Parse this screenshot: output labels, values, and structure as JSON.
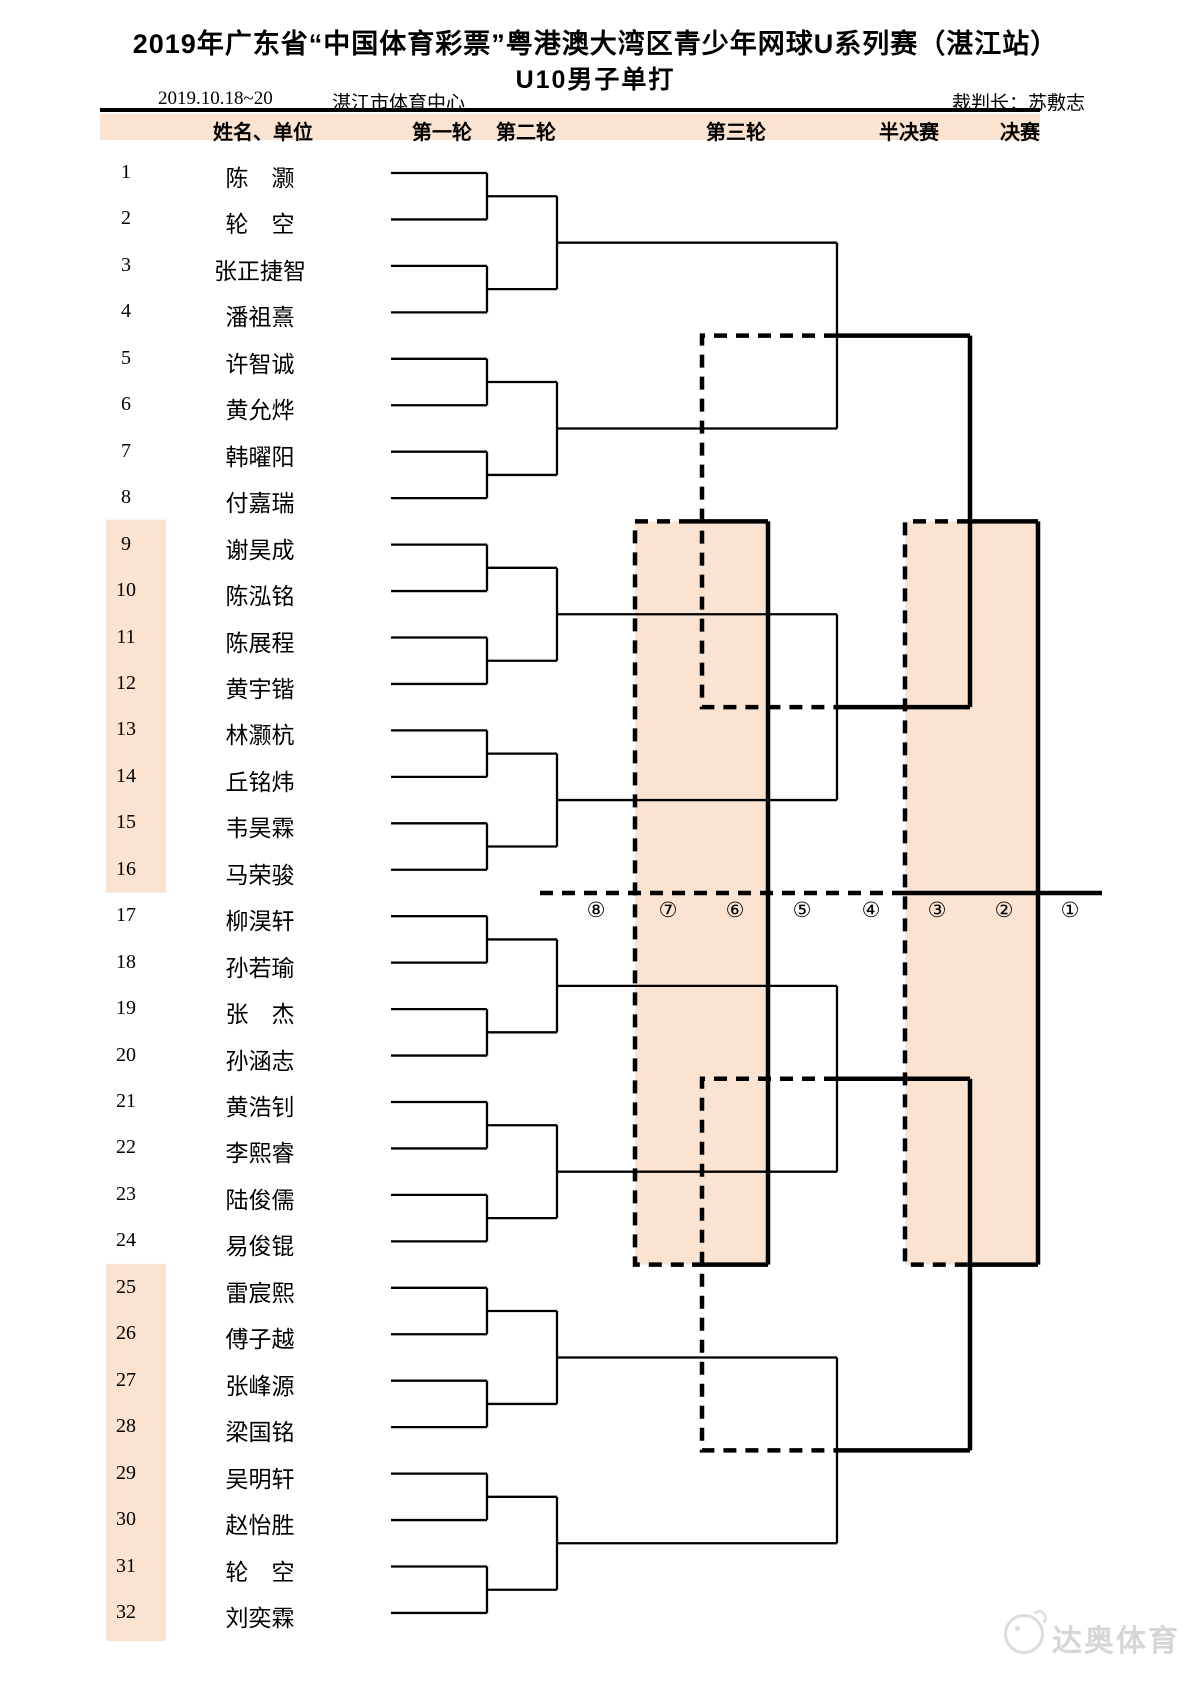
{
  "title": "2019年广东省“中国体育彩票”粤港澳大湾区青少年网球U系列赛（湛江站）",
  "subtitle": "U10男子单打",
  "info": {
    "date": "2019.10.18~20",
    "venue": "湛江市体育中心",
    "referee": "裁判长：苏敷志"
  },
  "header": {
    "cols": [
      "姓名、单位",
      "第一轮",
      "第二轮",
      "第三轮",
      "半决赛",
      "决赛"
    ]
  },
  "players": [
    {
      "no": "1",
      "name": "陈　灏"
    },
    {
      "no": "2",
      "name": "轮　空"
    },
    {
      "no": "3",
      "name": "张正捷智"
    },
    {
      "no": "4",
      "name": "潘祖熹"
    },
    {
      "no": "5",
      "name": "许智诚"
    },
    {
      "no": "6",
      "name": "黄允烨"
    },
    {
      "no": "7",
      "name": "韩曜阳"
    },
    {
      "no": "8",
      "name": "付嘉瑞"
    },
    {
      "no": "9",
      "name": "谢昊成"
    },
    {
      "no": "10",
      "name": "陈泓铭"
    },
    {
      "no": "11",
      "name": "陈展程"
    },
    {
      "no": "12",
      "name": "黄宇锴"
    },
    {
      "no": "13",
      "name": "林灏杭"
    },
    {
      "no": "14",
      "name": "丘铭炜"
    },
    {
      "no": "15",
      "name": "韦昊霖"
    },
    {
      "no": "16",
      "name": "马荣骏"
    },
    {
      "no": "17",
      "name": "柳淏轩"
    },
    {
      "no": "18",
      "name": "孙若瑜"
    },
    {
      "no": "19",
      "name": "张　杰"
    },
    {
      "no": "20",
      "name": "孙涵志"
    },
    {
      "no": "21",
      "name": "黄浩钊"
    },
    {
      "no": "22",
      "name": "李熙睿"
    },
    {
      "no": "23",
      "name": "陆俊儒"
    },
    {
      "no": "24",
      "name": "易俊锟"
    },
    {
      "no": "25",
      "name": "雷宸熙"
    },
    {
      "no": "26",
      "name": "傅子越"
    },
    {
      "no": "27",
      "name": "张峰源"
    },
    {
      "no": "28",
      "name": "梁国铭"
    },
    {
      "no": "29",
      "name": "吴明轩"
    },
    {
      "no": "30",
      "name": "赵怡胜"
    },
    {
      "no": "31",
      "name": "轮　空"
    },
    {
      "no": "32",
      "name": "刘奕霖"
    }
  ],
  "axis_labels": [
    "⑧",
    "⑦",
    "⑥",
    "⑤",
    "④",
    "③",
    "②",
    "①"
  ],
  "watermark": "达奥体育",
  "colors": {
    "highlight": "#fbe3d1",
    "line": "#000000",
    "watermark_gray": "#d6d6d6"
  }
}
